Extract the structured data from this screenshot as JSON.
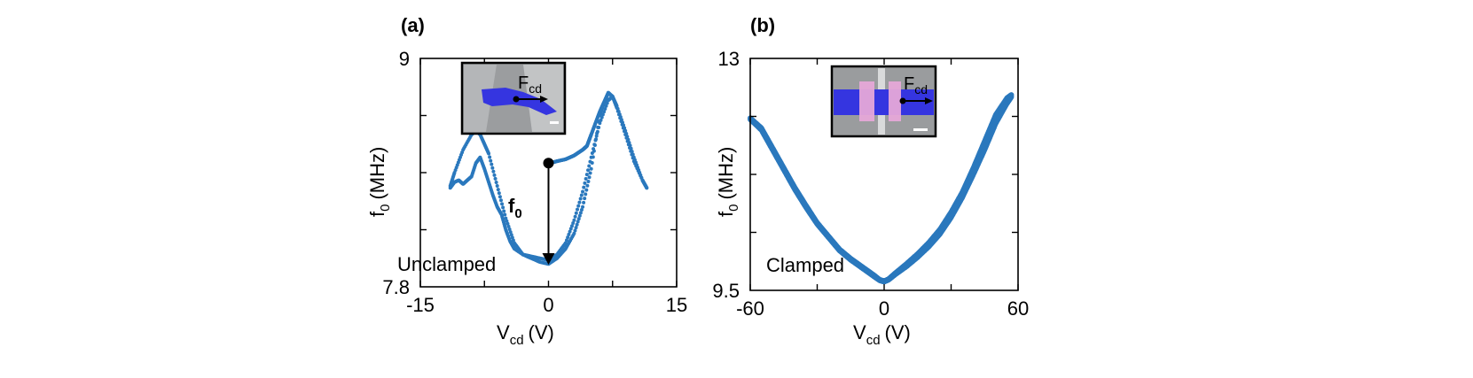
{
  "chart_data": [
    {
      "type": "scatter",
      "panel_label": "(a)",
      "xlabel_main": "V",
      "xlabel_sub": "cd",
      "xlabel_unit": "(V)",
      "ylabel_main": "f",
      "ylabel_sub": "0",
      "ylabel_unit": "(MHz)",
      "xlim": [
        -15,
        15
      ],
      "ylim": [
        7.8,
        9
      ],
      "xticks": [
        -15,
        0,
        15
      ],
      "xtick_labels": [
        "-15",
        "0",
        "15"
      ],
      "yticks": [
        7.8,
        9
      ],
      "ytick_labels": [
        "7.8",
        "9"
      ],
      "annotation": "Unclamped",
      "arrow_label_main": "f",
      "arrow_label_sub": "0",
      "arrow": {
        "x": 0,
        "y_start": 8.45,
        "y_end": 7.93
      },
      "inset_force_main": "F",
      "inset_force_sub": "cd",
      "color": "#2a78bd",
      "series": [
        {
          "x": [
            -11.5,
            -11,
            -10,
            -9,
            -8.5,
            -8,
            -7.5,
            -7,
            -6,
            -5,
            -4,
            -3,
            -2.5,
            -2,
            -1,
            0,
            1,
            2,
            3,
            4,
            5,
            6,
            7,
            7.5,
            8,
            9,
            10,
            11,
            11.5
          ],
          "y": [
            8.33,
            8.4,
            8.52,
            8.6,
            8.62,
            8.6,
            8.55,
            8.5,
            8.33,
            8.16,
            8.03,
            7.97,
            7.96,
            7.95,
            7.93,
            7.92,
            7.95,
            8.0,
            8.08,
            8.22,
            8.42,
            8.7,
            8.82,
            8.8,
            8.75,
            8.62,
            8.48,
            8.36,
            8.32
          ]
        },
        {
          "x": [
            -11.5,
            -11,
            -10.5,
            -10,
            -9.5,
            -9,
            -8.5,
            -8,
            -7.5,
            -7,
            -6.5,
            -6,
            -5.5,
            -5,
            -4.5,
            -4,
            -3,
            -2,
            -1,
            0,
            1,
            2,
            3,
            4,
            5,
            6,
            7,
            7.5,
            8,
            9,
            10,
            11,
            11.5
          ],
          "y": [
            8.32,
            8.35,
            8.36,
            8.34,
            8.36,
            8.38,
            8.45,
            8.48,
            8.42,
            8.35,
            8.28,
            8.22,
            8.18,
            8.1,
            8.04,
            8.0,
            7.97,
            7.96,
            7.95,
            7.94,
            7.97,
            8.03,
            8.15,
            8.3,
            8.48,
            8.66,
            8.78,
            8.8,
            8.74,
            8.6,
            8.46,
            8.36,
            8.32
          ]
        },
        {
          "x": [
            0.2,
            1,
            2,
            3,
            4,
            4.5,
            5,
            6,
            7
          ],
          "y": [
            8.45,
            8.46,
            8.47,
            8.49,
            8.52,
            8.54,
            8.6,
            8.72,
            8.82
          ]
        }
      ]
    },
    {
      "type": "scatter",
      "panel_label": "(b)",
      "xlabel_main": "V",
      "xlabel_sub": "cd",
      "xlabel_unit": "(V)",
      "ylabel_main": "f",
      "ylabel_sub": "0",
      "ylabel_unit": "(MHz)",
      "xlim": [
        -60,
        60
      ],
      "ylim": [
        9.5,
        13
      ],
      "xticks": [
        -60,
        0,
        60
      ],
      "xtick_labels": [
        "-60",
        "0",
        "60"
      ],
      "yticks": [
        9.5,
        13
      ],
      "ytick_labels": [
        "9.5",
        "13"
      ],
      "annotation": "Clamped",
      "inset_force_main": "F",
      "inset_force_sub": "cd",
      "color": "#2a78bd",
      "series": [
        {
          "x": [
            -60,
            -55,
            -50,
            -45,
            -40,
            -35,
            -30,
            -25,
            -20,
            -15,
            -10,
            -5,
            -2,
            0,
            2,
            5,
            10,
            15,
            20,
            25,
            30,
            35,
            40,
            45,
            50,
            55,
            57
          ],
          "y": [
            12.1,
            11.95,
            11.65,
            11.35,
            11.05,
            10.78,
            10.52,
            10.32,
            10.12,
            9.98,
            9.86,
            9.74,
            9.66,
            9.64,
            9.67,
            9.76,
            9.9,
            10.05,
            10.22,
            10.42,
            10.68,
            10.98,
            11.35,
            11.75,
            12.15,
            12.4,
            12.45
          ]
        },
        {
          "x": [
            -60,
            -55,
            -50,
            -45,
            -40,
            -35,
            -30,
            -25,
            -20,
            -15,
            -10,
            -5,
            -2,
            0,
            2,
            5,
            10,
            15,
            20,
            25,
            30,
            35,
            40,
            45,
            50,
            55,
            57
          ],
          "y": [
            12.08,
            11.92,
            11.62,
            11.32,
            11.02,
            10.75,
            10.5,
            10.3,
            10.1,
            9.96,
            9.84,
            9.72,
            9.65,
            9.63,
            9.66,
            9.74,
            9.86,
            10.0,
            10.16,
            10.35,
            10.6,
            10.9,
            11.25,
            11.62,
            12.02,
            12.32,
            12.42
          ]
        }
      ]
    }
  ]
}
